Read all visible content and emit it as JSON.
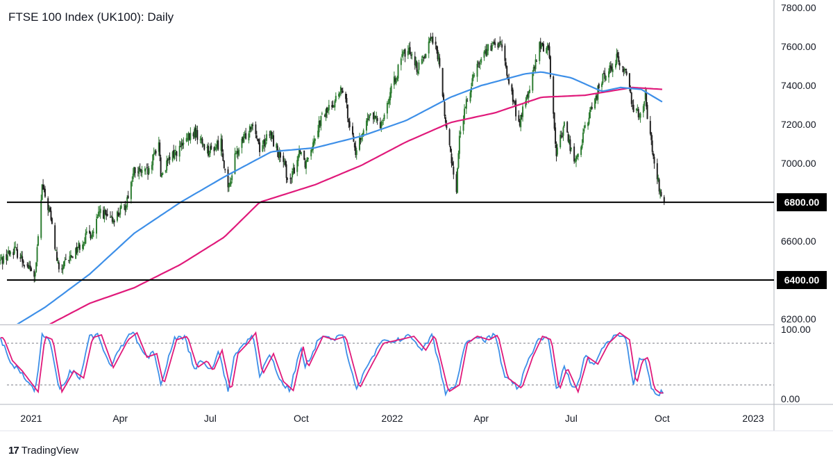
{
  "title": "FTSE 100 Index (UK100): Daily",
  "brand": {
    "name": "TradingView",
    "icon": "tradingview-logo-icon",
    "mark": "17"
  },
  "colors": {
    "candle_up": "#2e7d32",
    "candle_down": "#222222",
    "ma_fast": "#3d8fe8",
    "ma_slow": "#e0197a",
    "stoch_k": "#3d8fe8",
    "stoch_d": "#e0197a",
    "level_line": "#000000"
  },
  "chart_data": [
    {
      "type": "candlestick",
      "ylim": [
        6175,
        7840
      ],
      "y_ticks": [
        "6200.00",
        "6400.00",
        "6600.00",
        "6800.00",
        "7000.00",
        "7200.00",
        "7400.00",
        "7600.00",
        "7800.00"
      ],
      "x_ticks": [
        "2021",
        "Apr",
        "Jul",
        "Oct",
        "2022",
        "Apr",
        "Jul",
        "Oct",
        "2023"
      ],
      "horizontal_levels": [
        {
          "label": "6800.00",
          "value": 6800
        },
        {
          "label": "6400.00",
          "value": 6400
        }
      ],
      "price_path": [
        [
          "2020-12-01",
          6500
        ],
        [
          "2020-12-15",
          6560
        ],
        [
          "2021-01-05",
          6420
        ],
        [
          "2021-01-12",
          6880
        ],
        [
          "2021-01-20",
          6740
        ],
        [
          "2021-01-29",
          6440
        ],
        [
          "2021-02-10",
          6520
        ],
        [
          "2021-02-25",
          6620
        ],
        [
          "2021-03-05",
          6650
        ],
        [
          "2021-03-12",
          6760
        ],
        [
          "2021-03-22",
          6700
        ],
        [
          "2021-04-06",
          6780
        ],
        [
          "2021-04-15",
          6960
        ],
        [
          "2021-04-30",
          6950
        ],
        [
          "2021-05-10",
          7120
        ],
        [
          "2021-05-12",
          6940
        ],
        [
          "2021-05-25",
          7050
        ],
        [
          "2021-06-01",
          7080
        ],
        [
          "2021-06-15",
          7160
        ],
        [
          "2021-06-30",
          7060
        ],
        [
          "2021-07-12",
          7110
        ],
        [
          "2021-07-19",
          6850
        ],
        [
          "2021-07-26",
          7030
        ],
        [
          "2021-08-13",
          7220
        ],
        [
          "2021-08-20",
          7080
        ],
        [
          "2021-08-31",
          7150
        ],
        [
          "2021-09-10",
          7030
        ],
        [
          "2021-09-20",
          6900
        ],
        [
          "2021-09-30",
          7080
        ],
        [
          "2021-10-05",
          7000
        ],
        [
          "2021-10-20",
          7220
        ],
        [
          "2021-11-12",
          7380
        ],
        [
          "2021-11-26",
          7040
        ],
        [
          "2021-12-01",
          7150
        ],
        [
          "2021-12-10",
          7250
        ],
        [
          "2021-12-20",
          7200
        ],
        [
          "2022-01-12",
          7560
        ],
        [
          "2022-01-20",
          7580
        ],
        [
          "2022-01-27",
          7480
        ],
        [
          "2022-02-10",
          7660
        ],
        [
          "2022-02-18",
          7510
        ],
        [
          "2022-02-24",
          7200
        ],
        [
          "2022-03-07",
          6870
        ],
        [
          "2022-03-10",
          7150
        ],
        [
          "2022-03-25",
          7480
        ],
        [
          "2022-04-06",
          7580
        ],
        [
          "2022-04-20",
          7620
        ],
        [
          "2022-05-09",
          7200
        ],
        [
          "2022-05-20",
          7390
        ],
        [
          "2022-05-30",
          7600
        ],
        [
          "2022-06-08",
          7600
        ],
        [
          "2022-06-16",
          7050
        ],
        [
          "2022-06-24",
          7200
        ],
        [
          "2022-07-05",
          7000
        ],
        [
          "2022-07-20",
          7260
        ],
        [
          "2022-08-01",
          7430
        ],
        [
          "2022-08-16",
          7540
        ],
        [
          "2022-08-26",
          7460
        ],
        [
          "2022-09-02",
          7280
        ],
        [
          "2022-09-08",
          7260
        ],
        [
          "2022-09-14",
          7350
        ],
        [
          "2022-09-16",
          7240
        ],
        [
          "2022-09-23",
          7000
        ],
        [
          "2022-09-29",
          6850
        ],
        [
          "2022-10-03",
          6800
        ]
      ],
      "ma_fast_path": [
        [
          "2020-12-01",
          6120
        ],
        [
          "2021-01-15",
          6260
        ],
        [
          "2021-03-01",
          6430
        ],
        [
          "2021-04-15",
          6640
        ],
        [
          "2021-06-01",
          6800
        ],
        [
          "2021-07-15",
          6930
        ],
        [
          "2021-09-01",
          7060
        ],
        [
          "2021-10-15",
          7080
        ],
        [
          "2021-12-01",
          7140
        ],
        [
          "2022-01-15",
          7220
        ],
        [
          "2022-03-01",
          7340
        ],
        [
          "2022-04-01",
          7400
        ],
        [
          "2022-05-15",
          7460
        ],
        [
          "2022-06-01",
          7470
        ],
        [
          "2022-07-01",
          7440
        ],
        [
          "2022-08-01",
          7370
        ],
        [
          "2022-08-20",
          7390
        ],
        [
          "2022-09-10",
          7380
        ],
        [
          "2022-10-03",
          7310
        ]
      ],
      "ma_slow_path": [
        [
          "2020-12-01",
          6050
        ],
        [
          "2021-01-15",
          6160
        ],
        [
          "2021-03-01",
          6280
        ],
        [
          "2021-04-15",
          6360
        ],
        [
          "2021-06-01",
          6480
        ],
        [
          "2021-07-15",
          6620
        ],
        [
          "2021-08-20",
          6800
        ],
        [
          "2021-10-15",
          6890
        ],
        [
          "2021-12-01",
          6990
        ],
        [
          "2022-01-15",
          7110
        ],
        [
          "2022-03-01",
          7210
        ],
        [
          "2022-04-15",
          7260
        ],
        [
          "2022-06-01",
          7340
        ],
        [
          "2022-07-15",
          7350
        ],
        [
          "2022-09-01",
          7390
        ],
        [
          "2022-10-03",
          7380
        ]
      ]
    },
    {
      "type": "line",
      "ylim": [
        -4,
        104
      ],
      "y_ticks": [
        "100.00",
        "0.00"
      ],
      "reference_levels": [
        80,
        20
      ],
      "stoch_path": [
        [
          "2020-12-01",
          88
        ],
        [
          "2020-12-10",
          55
        ],
        [
          "2020-12-20",
          40
        ],
        [
          "2021-01-05",
          10
        ],
        [
          "2021-01-12",
          90
        ],
        [
          "2021-01-20",
          85
        ],
        [
          "2021-01-29",
          10
        ],
        [
          "2021-02-10",
          40
        ],
        [
          "2021-02-20",
          30
        ],
        [
          "2021-03-01",
          88
        ],
        [
          "2021-03-10",
          92
        ],
        [
          "2021-03-22",
          45
        ],
        [
          "2021-04-06",
          85
        ],
        [
          "2021-04-15",
          95
        ],
        [
          "2021-04-25",
          60
        ],
        [
          "2021-05-05",
          65
        ],
        [
          "2021-05-12",
          20
        ],
        [
          "2021-05-25",
          85
        ],
        [
          "2021-06-05",
          90
        ],
        [
          "2021-06-15",
          45
        ],
        [
          "2021-06-25",
          55
        ],
        [
          "2021-07-01",
          40
        ],
        [
          "2021-07-10",
          70
        ],
        [
          "2021-07-19",
          10
        ],
        [
          "2021-07-26",
          65
        ],
        [
          "2021-08-05",
          80
        ],
        [
          "2021-08-13",
          95
        ],
        [
          "2021-08-20",
          35
        ],
        [
          "2021-08-31",
          65
        ],
        [
          "2021-09-10",
          25
        ],
        [
          "2021-09-20",
          12
        ],
        [
          "2021-09-30",
          75
        ],
        [
          "2021-10-05",
          45
        ],
        [
          "2021-10-20",
          90
        ],
        [
          "2021-11-01",
          85
        ],
        [
          "2021-11-12",
          90
        ],
        [
          "2021-11-26",
          15
        ],
        [
          "2021-12-05",
          40
        ],
        [
          "2021-12-20",
          80
        ],
        [
          "2022-01-05",
          85
        ],
        [
          "2022-01-20",
          90
        ],
        [
          "2022-02-01",
          70
        ],
        [
          "2022-02-10",
          92
        ],
        [
          "2022-02-24",
          10
        ],
        [
          "2022-03-07",
          20
        ],
        [
          "2022-03-15",
          80
        ],
        [
          "2022-03-25",
          90
        ],
        [
          "2022-04-06",
          85
        ],
        [
          "2022-04-15",
          92
        ],
        [
          "2022-04-25",
          30
        ],
        [
          "2022-05-09",
          15
        ],
        [
          "2022-05-20",
          60
        ],
        [
          "2022-05-30",
          90
        ],
        [
          "2022-06-08",
          85
        ],
        [
          "2022-06-16",
          12
        ],
        [
          "2022-06-24",
          45
        ],
        [
          "2022-07-05",
          10
        ],
        [
          "2022-07-15",
          60
        ],
        [
          "2022-07-25",
          50
        ],
        [
          "2022-08-05",
          80
        ],
        [
          "2022-08-16",
          95
        ],
        [
          "2022-08-26",
          85
        ],
        [
          "2022-09-02",
          20
        ],
        [
          "2022-09-08",
          55
        ],
        [
          "2022-09-14",
          60
        ],
        [
          "2022-09-20",
          15
        ],
        [
          "2022-09-26",
          8
        ],
        [
          "2022-10-03",
          10
        ]
      ]
    }
  ]
}
